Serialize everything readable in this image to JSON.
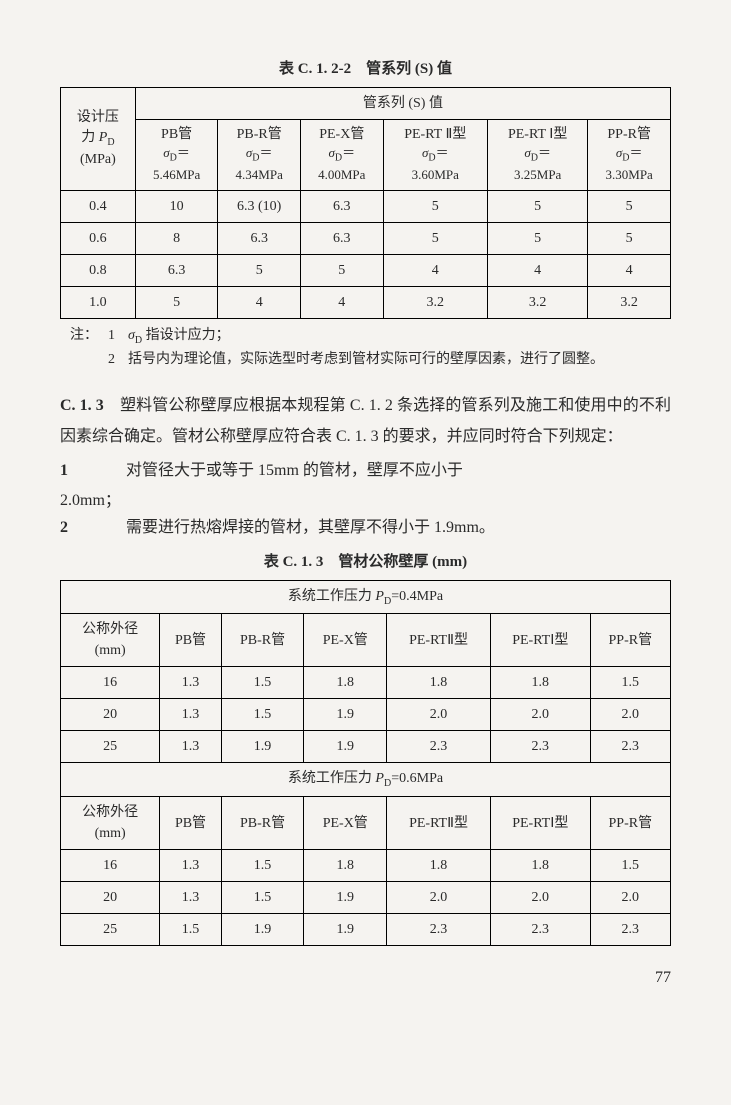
{
  "table1": {
    "title": "表 C. 1. 2-2　管系列 (S) 值",
    "row_hdr": "设计压力 P_D (MPa)",
    "group_hdr": "管系列 (S) 值",
    "cols": [
      {
        "name": "PB管",
        "sigma": "5.46MPa"
      },
      {
        "name": "PB-R管",
        "sigma": "4.34MPa"
      },
      {
        "name": "PE-X管",
        "sigma": "4.00MPa"
      },
      {
        "name": "PE-RT Ⅱ型",
        "sigma": "3.60MPa"
      },
      {
        "name": "PE-RT Ⅰ型",
        "sigma": "3.25MPa"
      },
      {
        "name": "PP-R管",
        "sigma": "3.30MPa"
      }
    ],
    "rows": [
      {
        "p": "0.4",
        "v": [
          "10",
          "6.3 (10)",
          "6.3",
          "5",
          "5",
          "5"
        ]
      },
      {
        "p": "0.6",
        "v": [
          "8",
          "6.3",
          "6.3",
          "5",
          "5",
          "5"
        ]
      },
      {
        "p": "0.8",
        "v": [
          "6.3",
          "5",
          "5",
          "4",
          "4",
          "4"
        ]
      },
      {
        "p": "1.0",
        "v": [
          "5",
          "4",
          "4",
          "3.2",
          "3.2",
          "3.2"
        ]
      }
    ],
    "notes_label": "注：",
    "notes": [
      "σ_D 指设计应力；",
      "括号内为理论值，实际选型时考虑到管材实际可行的壁厚因素，进行了圆整。"
    ]
  },
  "paragraph": {
    "num": "C. 1. 3",
    "text": "塑料管公称壁厚应根据本规程第 C. 1. 2 条选择的管系列及施工和使用中的不利因素综合确定。管材公称壁厚应符合表 C. 1. 3 的要求，并应同时符合下列规定："
  },
  "clauses": [
    {
      "num": "1",
      "text": "对管径大于或等于 15mm 的管材，壁厚不应小于",
      "trail": "2.0mm；"
    },
    {
      "num": "2",
      "text": "需要进行热熔焊接的管材，其壁厚不得小于 1.9mm。",
      "trail": ""
    }
  ],
  "table2": {
    "title": "表 C. 1. 3　管材公称壁厚 (mm)",
    "row_hdr": "公称外径 (mm)",
    "sections": [
      {
        "caption": "系统工作压力 P_D=0.4MPa",
        "cols": [
          "PB管",
          "PB-R管",
          "PE-X管",
          "PE-RTⅡ型",
          "PE-RTⅠ型",
          "PP-R管"
        ],
        "rows": [
          {
            "d": "16",
            "v": [
              "1.3",
              "1.5",
              "1.8",
              "1.8",
              "1.8",
              "1.5"
            ]
          },
          {
            "d": "20",
            "v": [
              "1.3",
              "1.5",
              "1.9",
              "2.0",
              "2.0",
              "2.0"
            ]
          },
          {
            "d": "25",
            "v": [
              "1.3",
              "1.9",
              "1.9",
              "2.3",
              "2.3",
              "2.3"
            ]
          }
        ]
      },
      {
        "caption": "系统工作压力 P_D=0.6MPa",
        "cols": [
          "PB管",
          "PB-R管",
          "PE-X管",
          "PE-RTⅡ型",
          "PE-RTⅠ型",
          "PP-R管"
        ],
        "rows": [
          {
            "d": "16",
            "v": [
              "1.3",
              "1.5",
              "1.8",
              "1.8",
              "1.8",
              "1.5"
            ]
          },
          {
            "d": "20",
            "v": [
              "1.3",
              "1.5",
              "1.9",
              "2.0",
              "2.0",
              "2.0"
            ]
          },
          {
            "d": "25",
            "v": [
              "1.5",
              "1.9",
              "1.9",
              "2.3",
              "2.3",
              "2.3"
            ]
          }
        ]
      }
    ]
  },
  "page_no": "77"
}
